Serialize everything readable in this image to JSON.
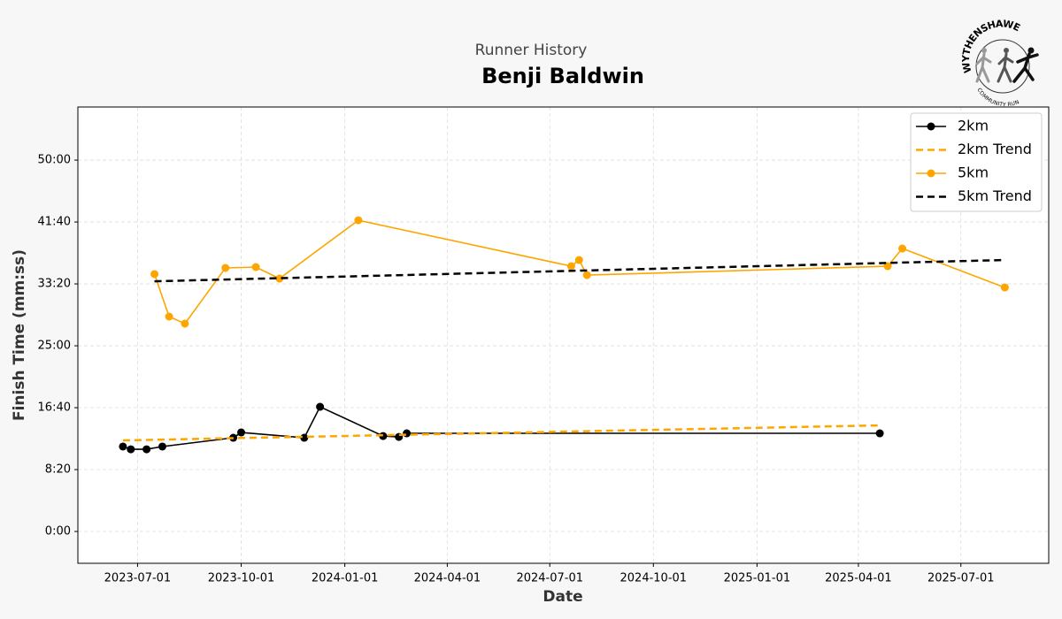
{
  "chart_data": {
    "type": "line",
    "supertitle": "Runner History",
    "title": "Benji Baldwin",
    "xlabel": "Date",
    "ylabel": "Finish Time (mm:ss)",
    "logo_top": "WYTHENSHAWE",
    "logo_bottom": "COMMUNITY RUN",
    "xlim": [
      "2023-05-09",
      "2025-09-17"
    ],
    "xticks": [
      "2023-07-01",
      "2023-10-01",
      "2024-01-01",
      "2024-04-01",
      "2024-07-01",
      "2024-10-01",
      "2025-01-01",
      "2025-04-01",
      "2025-07-01"
    ],
    "ylim": [
      -257,
      3429
    ],
    "yticks": [
      {
        "value": 0,
        "label": "0:00"
      },
      {
        "value": 500,
        "label": "8:20"
      },
      {
        "value": 1000,
        "label": "16:40"
      },
      {
        "value": 1500,
        "label": "25:00"
      },
      {
        "value": 2000,
        "label": "33:20"
      },
      {
        "value": 2500,
        "label": "41:40"
      },
      {
        "value": 3000,
        "label": "50:00"
      }
    ],
    "grid": true,
    "legend": "upper right",
    "series": [
      {
        "name": "2km",
        "color": "#000000",
        "linestyle": "solid",
        "marker": true,
        "x": [
          "2023-06-18",
          "2023-06-25",
          "2023-07-09",
          "2023-07-23",
          "2023-09-24",
          "2023-10-01",
          "2023-11-26",
          "2023-12-10",
          "2024-02-04",
          "2024-02-18",
          "2024-02-25",
          "2025-04-20"
        ],
        "values": [
          686,
          664,
          664,
          686,
          757,
          800,
          757,
          1007,
          771,
          764,
          793,
          793
        ]
      },
      {
        "name": "2km Trend",
        "color": "#ffa500",
        "linestyle": "dashed",
        "marker": false,
        "x": [
          "2023-06-18",
          "2025-04-20"
        ],
        "values": [
          736,
          857
        ]
      },
      {
        "name": "5km",
        "color": "#ffa500",
        "linestyle": "solid",
        "marker": true,
        "x": [
          "2023-07-16",
          "2023-07-29",
          "2023-08-12",
          "2023-09-17",
          "2023-10-14",
          "2023-11-04",
          "2024-01-13",
          "2024-07-20",
          "2024-07-27",
          "2024-08-03",
          "2025-04-27",
          "2025-05-10",
          "2025-08-09"
        ],
        "values": [
          2079,
          1736,
          1679,
          2129,
          2136,
          2043,
          2514,
          2143,
          2193,
          2071,
          2143,
          2286,
          1971
        ]
      },
      {
        "name": "5km Trend",
        "color": "#000000",
        "linestyle": "dashed",
        "marker": false,
        "x": [
          "2023-07-16",
          "2025-08-09"
        ],
        "values": [
          2021,
          2193
        ]
      }
    ]
  }
}
